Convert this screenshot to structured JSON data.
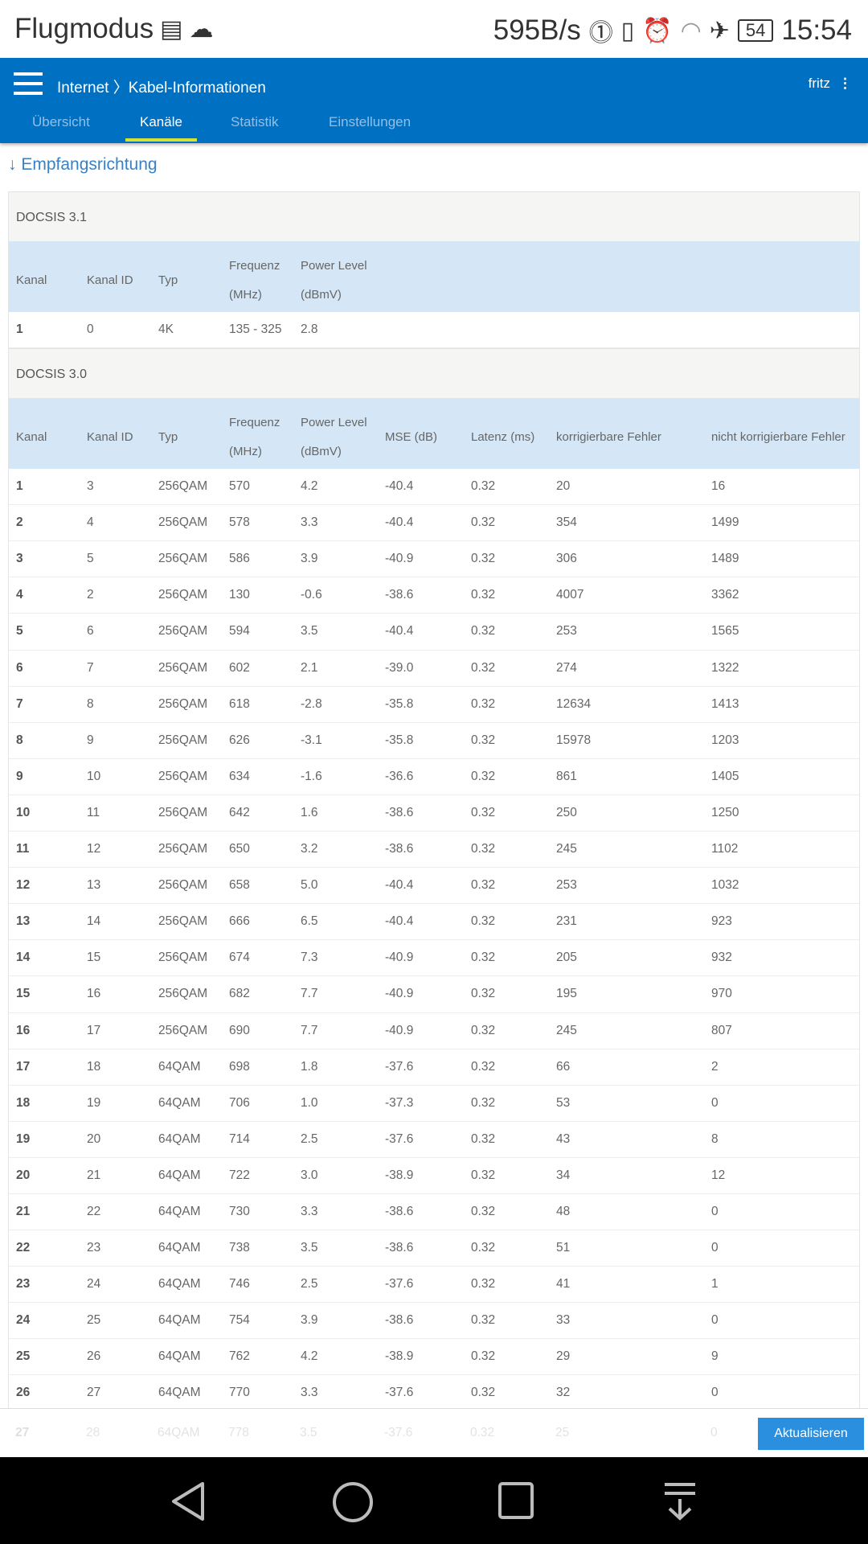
{
  "status": {
    "left": "Flugmodus",
    "speed": "595B/s",
    "battery": "54",
    "time": "15:54",
    "icons": [
      "calendar-icon",
      "cloud-icon",
      "data-saver-icon",
      "vibrate-icon",
      "alarm-icon",
      "wifi-icon",
      "airplane-icon",
      "battery-icon"
    ]
  },
  "header": {
    "breadcrumb": "Internet 〉Kabel-Informationen",
    "user": "fritz",
    "tabs": [
      {
        "label": "Übersicht"
      },
      {
        "label": "Kanäle",
        "active": true
      },
      {
        "label": "Statistik"
      },
      {
        "label": "Einstellungen"
      }
    ],
    "color": "#0070c2"
  },
  "direction": "↓ Empfangsrichtung",
  "docsis31": {
    "title": "DOCSIS 3.1",
    "headers": [
      "Kanal",
      "Kanal ID",
      "Typ",
      "Frequenz",
      "(MHz)",
      "Power Level",
      "(dBmV)"
    ],
    "rows": [
      [
        "1",
        "0",
        "4K",
        "135 - 325",
        "2.8"
      ]
    ]
  },
  "docsis30": {
    "title": "DOCSIS 3.0",
    "headers": [
      "Kanal",
      "Kanal ID",
      "Typ",
      "Frequenz",
      "(MHz)",
      "Power Level",
      "(dBmV)",
      "MSE (dB)",
      "Latenz (ms)",
      "korrigierbare Fehler",
      "nicht korrigierbare Fehler"
    ],
    "rows": [
      [
        "1",
        "3",
        "256QAM",
        "570",
        "4.2",
        "-40.4",
        "0.32",
        "20",
        "16"
      ],
      [
        "2",
        "4",
        "256QAM",
        "578",
        "3.3",
        "-40.4",
        "0.32",
        "354",
        "1499"
      ],
      [
        "3",
        "5",
        "256QAM",
        "586",
        "3.9",
        "-40.9",
        "0.32",
        "306",
        "1489"
      ],
      [
        "4",
        "2",
        "256QAM",
        "130",
        "-0.6",
        "-38.6",
        "0.32",
        "4007",
        "3362"
      ],
      [
        "5",
        "6",
        "256QAM",
        "594",
        "3.5",
        "-40.4",
        "0.32",
        "253",
        "1565"
      ],
      [
        "6",
        "7",
        "256QAM",
        "602",
        "2.1",
        "-39.0",
        "0.32",
        "274",
        "1322"
      ],
      [
        "7",
        "8",
        "256QAM",
        "618",
        "-2.8",
        "-35.8",
        "0.32",
        "12634",
        "1413"
      ],
      [
        "8",
        "9",
        "256QAM",
        "626",
        "-3.1",
        "-35.8",
        "0.32",
        "15978",
        "1203"
      ],
      [
        "9",
        "10",
        "256QAM",
        "634",
        "-1.6",
        "-36.6",
        "0.32",
        "861",
        "1405"
      ],
      [
        "10",
        "11",
        "256QAM",
        "642",
        "1.6",
        "-38.6",
        "0.32",
        "250",
        "1250"
      ],
      [
        "11",
        "12",
        "256QAM",
        "650",
        "3.2",
        "-38.6",
        "0.32",
        "245",
        "1102"
      ],
      [
        "12",
        "13",
        "256QAM",
        "658",
        "5.0",
        "-40.4",
        "0.32",
        "253",
        "1032"
      ],
      [
        "13",
        "14",
        "256QAM",
        "666",
        "6.5",
        "-40.4",
        "0.32",
        "231",
        "923"
      ],
      [
        "14",
        "15",
        "256QAM",
        "674",
        "7.3",
        "-40.9",
        "0.32",
        "205",
        "932"
      ],
      [
        "15",
        "16",
        "256QAM",
        "682",
        "7.7",
        "-40.9",
        "0.32",
        "195",
        "970"
      ],
      [
        "16",
        "17",
        "256QAM",
        "690",
        "7.7",
        "-40.9",
        "0.32",
        "245",
        "807"
      ],
      [
        "17",
        "18",
        "64QAM",
        "698",
        "1.8",
        "-37.6",
        "0.32",
        "66",
        "2"
      ],
      [
        "18",
        "19",
        "64QAM",
        "706",
        "1.0",
        "-37.3",
        "0.32",
        "53",
        "0"
      ],
      [
        "19",
        "20",
        "64QAM",
        "714",
        "2.5",
        "-37.6",
        "0.32",
        "43",
        "8"
      ],
      [
        "20",
        "21",
        "64QAM",
        "722",
        "3.0",
        "-38.9",
        "0.32",
        "34",
        "12"
      ],
      [
        "21",
        "22",
        "64QAM",
        "730",
        "3.3",
        "-38.6",
        "0.32",
        "48",
        "0"
      ],
      [
        "22",
        "23",
        "64QAM",
        "738",
        "3.5",
        "-38.6",
        "0.32",
        "51",
        "0"
      ],
      [
        "23",
        "24",
        "64QAM",
        "746",
        "2.5",
        "-37.6",
        "0.32",
        "41",
        "1"
      ],
      [
        "24",
        "25",
        "64QAM",
        "754",
        "3.9",
        "-38.6",
        "0.32",
        "33",
        "0"
      ],
      [
        "25",
        "26",
        "64QAM",
        "762",
        "4.2",
        "-38.9",
        "0.32",
        "29",
        "9"
      ],
      [
        "26",
        "27",
        "64QAM",
        "770",
        "3.3",
        "-37.6",
        "0.32",
        "32",
        "0"
      ]
    ],
    "partial_row": [
      "27",
      "28",
      "64QAM",
      "778",
      "3.5",
      "-37.6",
      "0.32",
      "25",
      "0"
    ]
  },
  "refresh_label": "Aktualisieren",
  "nav": [
    "back-icon",
    "home-icon",
    "recents-icon",
    "notification-pull-icon"
  ]
}
